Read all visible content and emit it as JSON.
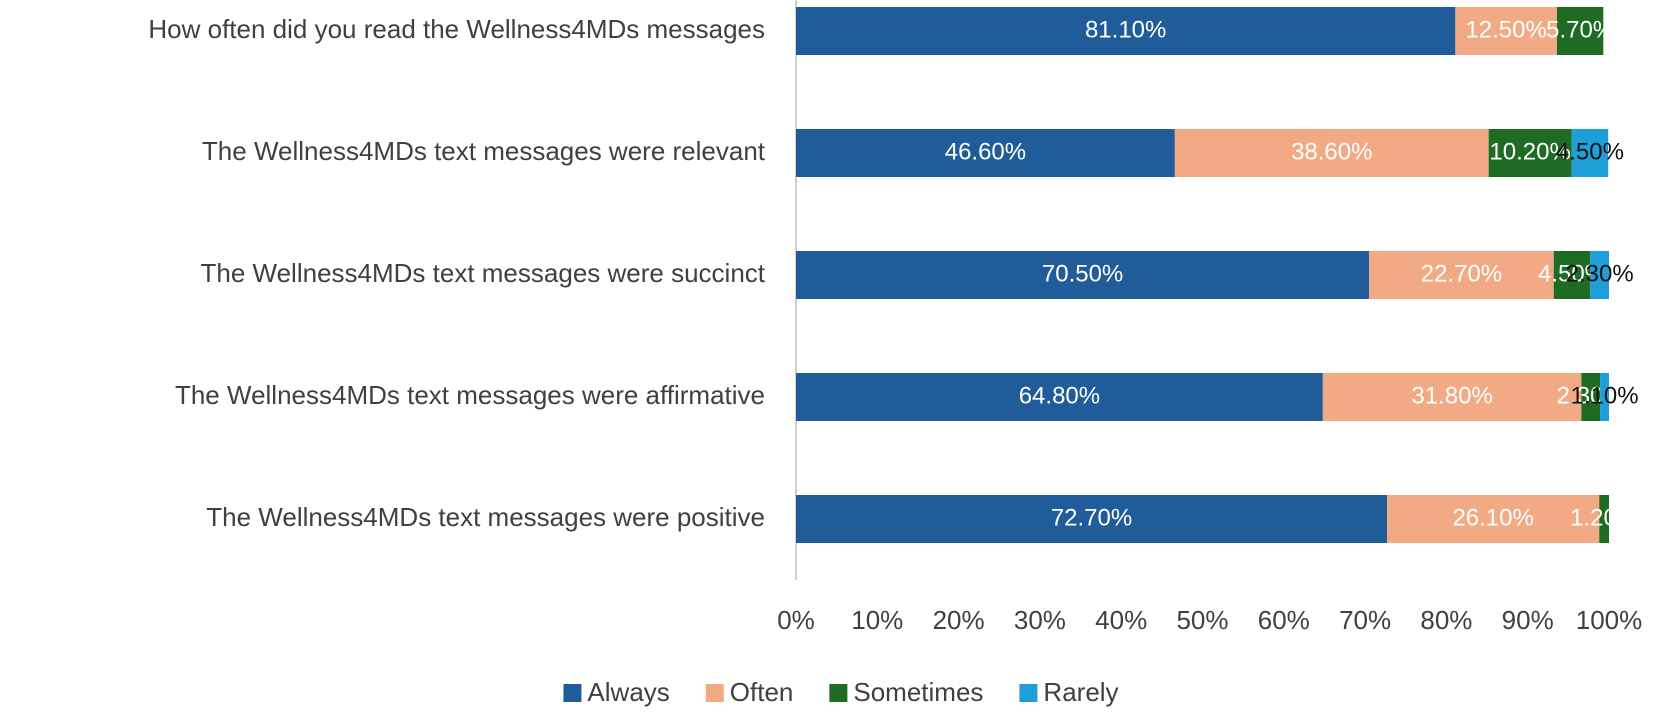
{
  "chart_data": {
    "type": "stacked_bar_horizontal",
    "categories": [
      "How often did you read the Wellness4MDs messages",
      "The Wellness4MDs text messages were relevant",
      "The Wellness4MDs text messages were succinct",
      "The Wellness4MDs text messages were affirmative",
      "The Wellness4MDs text messages were positive"
    ],
    "series": [
      {
        "name": "Always",
        "color": "#1f5c99",
        "values": [
          81.1,
          46.6,
          70.5,
          64.8,
          72.7
        ],
        "value_labels": [
          "81.10%",
          "46.60%",
          "70.50%",
          "64.80%",
          "72.70%"
        ]
      },
      {
        "name": "Often",
        "color": "#f2aa84",
        "values": [
          12.5,
          38.6,
          22.7,
          31.8,
          26.1
        ],
        "value_labels": [
          "12.50%",
          "38.60%",
          "22.70%",
          "31.80%",
          "26.10%"
        ]
      },
      {
        "name": "Sometimes",
        "color": "#1e6b24",
        "values": [
          5.7,
          10.2,
          4.5,
          2.3,
          1.2
        ],
        "value_labels": [
          "5.70%",
          "10.20%",
          "4.50%",
          "2.30%",
          "1.20%"
        ]
      },
      {
        "name": "Rarely",
        "color": "#1e9fd8",
        "values": [
          null,
          4.5,
          2.3,
          1.1,
          null
        ],
        "value_labels": [
          null,
          "4.50%",
          "2.30%",
          "1.10%",
          null
        ]
      }
    ],
    "xlim": [
      0,
      100
    ],
    "xticks": [
      {
        "value": 0,
        "label": "0%"
      },
      {
        "value": 10,
        "label": "10%"
      },
      {
        "value": 20,
        "label": "20%"
      },
      {
        "value": 30,
        "label": "30%"
      },
      {
        "value": 40,
        "label": "40%"
      },
      {
        "value": 50,
        "label": "50%"
      },
      {
        "value": 60,
        "label": "60%"
      },
      {
        "value": 70,
        "label": "70%"
      },
      {
        "value": 80,
        "label": "80%"
      },
      {
        "value": 90,
        "label": "90%"
      },
      {
        "value": 100,
        "label": "100%"
      }
    ],
    "grid": false,
    "legend": "bottom"
  }
}
